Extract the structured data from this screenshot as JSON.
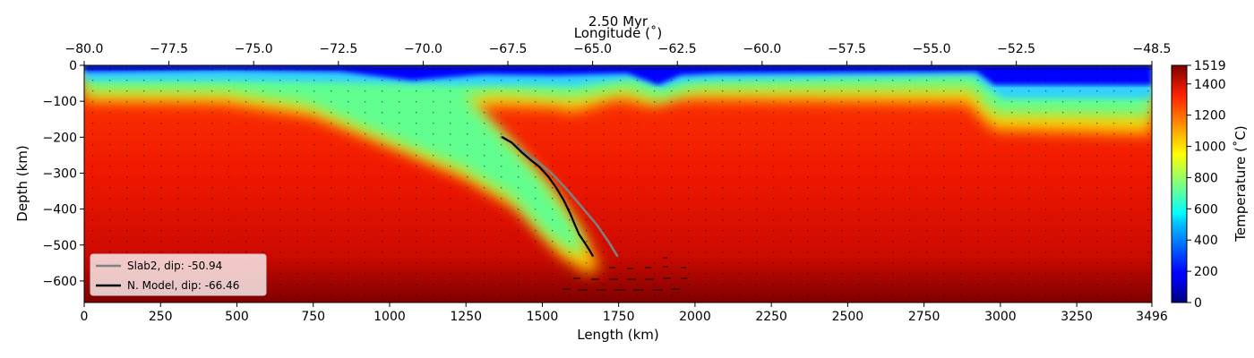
{
  "chart_data": {
    "type": "heatmap",
    "title": "2.50 Myr",
    "xlabel": "Length (km)",
    "ylabel": "Depth (km)",
    "top_xlabel": "Longitude (˚)",
    "colorbar_label": "Temperature (˚C)",
    "xlim": [
      0,
      3496
    ],
    "ylim": [
      -660,
      0
    ],
    "top_xlim": [
      -80.0,
      -48.5
    ],
    "color_range": [
      0,
      1519
    ],
    "colormap": "jet",
    "x_ticks": [
      "0",
      "250",
      "500",
      "750",
      "1000",
      "1250",
      "1500",
      "1750",
      "2000",
      "2250",
      "2500",
      "2750",
      "3000",
      "3250",
      "3496"
    ],
    "y_ticks": [
      "0",
      "−100",
      "−200",
      "−300",
      "−400",
      "−500",
      "−600"
    ],
    "top_x_ticks": [
      "−80.0",
      "−77.5",
      "−75.0",
      "−72.5",
      "−70.0",
      "−67.5",
      "−65.0",
      "−62.5",
      "−60.0",
      "−57.5",
      "−55.0",
      "−52.5",
      "−48.5"
    ],
    "colorbar_ticks": [
      "0",
      "200",
      "400",
      "600",
      "800",
      "1000",
      "1200",
      "1400",
      "1519"
    ],
    "series": [
      {
        "name": "Slab2, dip: -50.94",
        "color": "#808080",
        "x": [
          1365,
          1400,
          1440,
          1480,
          1530,
          1580,
          1630,
          1680,
          1720,
          1745
        ],
        "y": [
          -200,
          -215,
          -240,
          -265,
          -300,
          -345,
          -395,
          -445,
          -495,
          -530
        ]
      },
      {
        "name": "N. Model, dip: -66.46",
        "color": "#000000",
        "x": [
          1370,
          1400,
          1430,
          1460,
          1490,
          1520,
          1545,
          1570,
          1590,
          1605,
          1620,
          1640,
          1655,
          1665
        ],
        "y": [
          -200,
          -215,
          -240,
          -262,
          -282,
          -310,
          -340,
          -375,
          -410,
          -440,
          -470,
          -495,
          -515,
          -530
        ]
      }
    ],
    "legend_position": "lower-left"
  }
}
